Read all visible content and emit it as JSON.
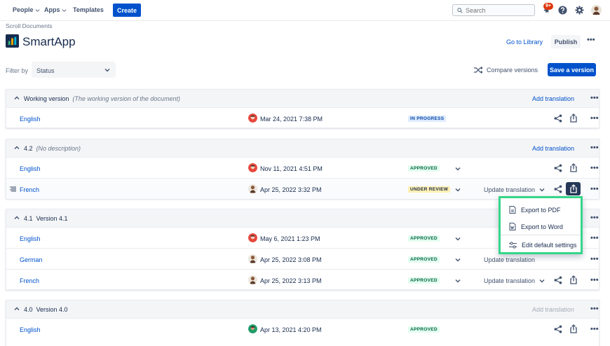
{
  "nav": {
    "people": "People",
    "apps": "Apps",
    "templates": "Templates",
    "create": "Create",
    "search_placeholder": "Search",
    "notification_count": "9+"
  },
  "header": {
    "breadcrumb": "Scroll Documents",
    "title": "SmartApp",
    "go_to_library": "Go to Library",
    "publish": "Publish"
  },
  "filter": {
    "label": "Filter by",
    "value": "Status",
    "compare_versions": "Compare versions",
    "save_version": "Save a version"
  },
  "versions": [
    {
      "name": "Working version",
      "description": "(The working version of the document)",
      "add_translation": "Add translation",
      "rows": [
        {
          "lang": "English",
          "date": "Mar 24, 2021 7:38 PM",
          "status": "IN PROGRESS"
        }
      ]
    },
    {
      "name": "4.2",
      "description": "(No description)",
      "add_translation": "Add translation",
      "rows": [
        {
          "lang": "English",
          "date": "Nov 11, 2021 4:51 PM",
          "status": "APPROVED"
        },
        {
          "lang": "French",
          "date": "Apr 25, 2022 3:32 PM",
          "status": "UNDER REVIEW",
          "update": "Update translation"
        }
      ]
    },
    {
      "name": "4.1",
      "description": "Version 4.1",
      "add_translation": "Add translation",
      "rows": [
        {
          "lang": "English",
          "date": "May 6, 2021 1:23 PM",
          "status": "APPROVED"
        },
        {
          "lang": "German",
          "date": "Apr 25, 2022 3:08 PM",
          "status": "APPROVED",
          "update": "Update translation"
        },
        {
          "lang": "French",
          "date": "Apr 25, 2022 3:13 PM",
          "status": "APPROVED",
          "update": "Update translation"
        }
      ]
    },
    {
      "name": "4.0",
      "description": "Version 4.0",
      "add_translation": "Add translation",
      "rows": [
        {
          "lang": "English",
          "date": "Apr 13, 2021 4:20 PM",
          "status": "APPROVED"
        }
      ]
    }
  ],
  "export_menu": {
    "pdf": "Export to PDF",
    "word": "Export to Word",
    "settings": "Edit default settings"
  },
  "colors": {
    "primary": "#0052cc",
    "highlight": "#36d68a",
    "badge": "#de350b"
  }
}
